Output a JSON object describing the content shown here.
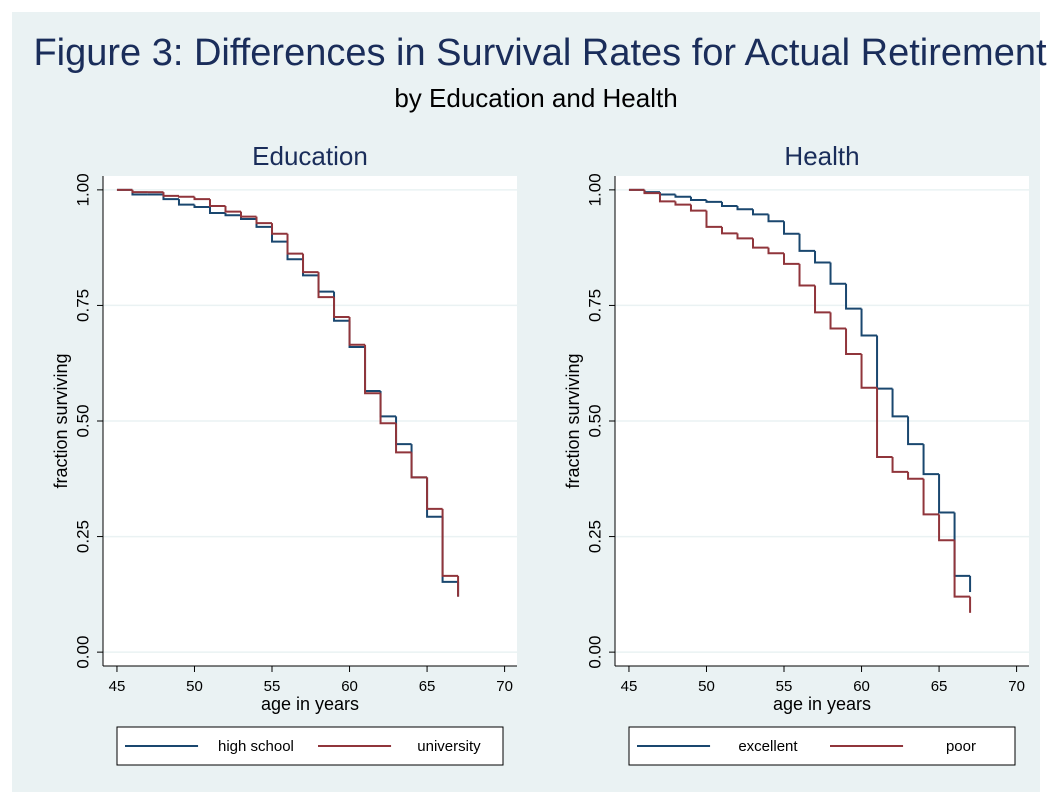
{
  "title": "Figure 3: Differences in Survival Rates for Actual Retirement",
  "subtitle": "by Education and Health",
  "chart_data": [
    {
      "type": "step",
      "title": "Education",
      "x_label": "age in years",
      "y_label": "fraction surviving",
      "x": [
        45,
        46,
        47,
        48,
        49,
        50,
        51,
        52,
        53,
        54,
        55,
        56,
        57,
        58,
        59,
        60,
        61,
        62,
        63,
        64,
        65,
        66,
        67
      ],
      "series": [
        {
          "name": "high school",
          "color": "#1a476f",
          "values": [
            1.0,
            0.99,
            0.99,
            0.98,
            0.968,
            0.963,
            0.95,
            0.945,
            0.937,
            0.92,
            0.888,
            0.85,
            0.815,
            0.78,
            0.717,
            0.66,
            0.565,
            0.51,
            0.45,
            0.378,
            0.293,
            0.152,
            0.12
          ]
        },
        {
          "name": "university",
          "color": "#90353b",
          "values": [
            1.0,
            0.995,
            0.995,
            0.987,
            0.985,
            0.98,
            0.965,
            0.953,
            0.942,
            0.928,
            0.905,
            0.862,
            0.822,
            0.768,
            0.725,
            0.665,
            0.56,
            0.495,
            0.432,
            0.378,
            0.31,
            0.165,
            0.12
          ]
        }
      ],
      "xlim": [
        44.1,
        70.8
      ],
      "xticks": [
        45,
        50,
        55,
        60,
        65,
        70
      ],
      "ylim": [
        -0.03,
        1.03
      ],
      "yticks": [
        {
          "value": 0,
          "label": "0.00"
        },
        {
          "value": 0.25,
          "label": "0.25"
        },
        {
          "value": 0.5,
          "label": "0.50"
        },
        {
          "value": 0.75,
          "label": "0.75"
        },
        {
          "value": 1,
          "label": "1.00"
        }
      ],
      "grid": true,
      "legend": "bottom"
    },
    {
      "type": "step",
      "title": "Health",
      "x_label": "age in years",
      "y_label": "fraction surviving",
      "x": [
        45,
        46,
        47,
        48,
        49,
        50,
        51,
        52,
        53,
        54,
        55,
        56,
        57,
        58,
        59,
        60,
        61,
        62,
        63,
        64,
        65,
        66,
        67
      ],
      "series": [
        {
          "name": "excellent",
          "color": "#1a476f",
          "values": [
            1.0,
            0.995,
            0.99,
            0.985,
            0.978,
            0.974,
            0.965,
            0.958,
            0.947,
            0.932,
            0.905,
            0.868,
            0.843,
            0.797,
            0.743,
            0.685,
            0.57,
            0.51,
            0.45,
            0.385,
            0.302,
            0.165,
            0.13
          ]
        },
        {
          "name": "poor",
          "color": "#90353b",
          "values": [
            1.0,
            0.993,
            0.975,
            0.968,
            0.955,
            0.92,
            0.906,
            0.895,
            0.875,
            0.863,
            0.84,
            0.793,
            0.735,
            0.7,
            0.645,
            0.572,
            0.422,
            0.39,
            0.375,
            0.298,
            0.242,
            0.12,
            0.085
          ]
        }
      ],
      "xlim": [
        44.1,
        70.8
      ],
      "xticks": [
        45,
        50,
        55,
        60,
        65,
        70
      ],
      "ylim": [
        -0.03,
        1.03
      ],
      "yticks": [
        {
          "value": 0,
          "label": "0.00"
        },
        {
          "value": 0.25,
          "label": "0.25"
        },
        {
          "value": 0.5,
          "label": "0.50"
        },
        {
          "value": 0.75,
          "label": "0.75"
        },
        {
          "value": 1,
          "label": "1.00"
        }
      ],
      "grid": true,
      "legend": "bottom"
    }
  ]
}
